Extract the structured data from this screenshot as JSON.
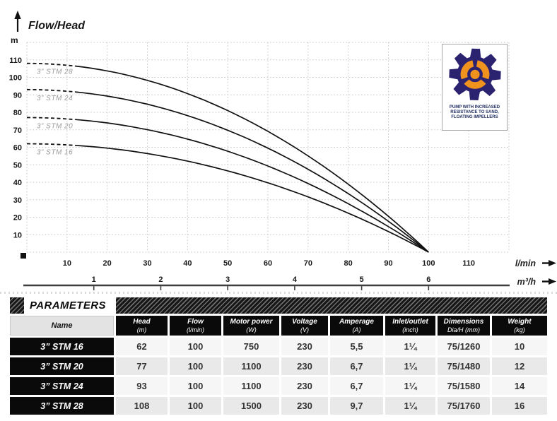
{
  "chart_data": {
    "type": "line",
    "title": "Flow/Head",
    "ylabel": "m",
    "xlabel_primary": "l/min",
    "xlabel_secondary": "m³/h",
    "xlim": [
      0,
      120
    ],
    "ylim": [
      0,
      120
    ],
    "grid": true,
    "y_ticks": [
      10,
      20,
      30,
      40,
      50,
      60,
      70,
      80,
      90,
      100,
      110
    ],
    "x_ticks_lmin": [
      10,
      20,
      30,
      40,
      50,
      60,
      70,
      80,
      90,
      100,
      110
    ],
    "x_ticks_m3h": [
      1,
      2,
      3,
      4,
      5,
      6
    ],
    "convergence_point": {
      "x_lmin": 100,
      "head_m": 0
    },
    "series": [
      {
        "name": "3” STM 28",
        "shutoff_head_m": 108,
        "points": [
          {
            "x": 0,
            "y": 108
          },
          {
            "x": 20,
            "y": 104
          },
          {
            "x": 40,
            "y": 91
          },
          {
            "x": 60,
            "y": 69
          },
          {
            "x": 80,
            "y": 39
          },
          {
            "x": 100,
            "y": 0
          }
        ]
      },
      {
        "name": "3” STM 24",
        "shutoff_head_m": 93,
        "points": [
          {
            "x": 0,
            "y": 93
          },
          {
            "x": 20,
            "y": 89
          },
          {
            "x": 40,
            "y": 78
          },
          {
            "x": 60,
            "y": 60
          },
          {
            "x": 80,
            "y": 33
          },
          {
            "x": 100,
            "y": 0
          }
        ]
      },
      {
        "name": "3” STM 20",
        "shutoff_head_m": 77,
        "points": [
          {
            "x": 0,
            "y": 77
          },
          {
            "x": 20,
            "y": 74
          },
          {
            "x": 40,
            "y": 65
          },
          {
            "x": 60,
            "y": 49
          },
          {
            "x": 80,
            "y": 28
          },
          {
            "x": 100,
            "y": 0
          }
        ]
      },
      {
        "name": "3” STM 16",
        "shutoff_head_m": 62,
        "points": [
          {
            "x": 0,
            "y": 62
          },
          {
            "x": 20,
            "y": 60
          },
          {
            "x": 40,
            "y": 52
          },
          {
            "x": 60,
            "y": 40
          },
          {
            "x": 80,
            "y": 22
          },
          {
            "x": 100,
            "y": 0
          }
        ]
      }
    ]
  },
  "badge": {
    "lines": [
      "PUMP WITH INCREASED",
      "RESISTANCE TO SAND,",
      "FLOATING IMPELLERS"
    ]
  },
  "parameters": {
    "banner": "PARAMETERS",
    "columns": [
      {
        "label": "Name",
        "unit": ""
      },
      {
        "label": "Head",
        "unit": "(m)"
      },
      {
        "label": "Flow",
        "unit": "(l/min)"
      },
      {
        "label": "Motor power",
        "unit": "(W)"
      },
      {
        "label": "Voltage",
        "unit": "(V)"
      },
      {
        "label": "Amperage",
        "unit": "(A)"
      },
      {
        "label": "Inlet/outlet",
        "unit": "(inch)"
      },
      {
        "label": "Dimensions",
        "unit": "Dia/H (mm)"
      },
      {
        "label": "Weight",
        "unit": "(kg)"
      }
    ],
    "rows": [
      {
        "name": "3” STM 16",
        "head": "62",
        "flow": "100",
        "motor_power": "750",
        "voltage": "230",
        "amperage": "5,5",
        "inlet_outlet": "1¼",
        "dimensions": "75/1260",
        "weight": "10"
      },
      {
        "name": "3” STM 20",
        "head": "77",
        "flow": "100",
        "motor_power": "1100",
        "voltage": "230",
        "amperage": "6,7",
        "inlet_outlet": "1¼",
        "dimensions": "75/1480",
        "weight": "12"
      },
      {
        "name": "3” STM 24",
        "head": "93",
        "flow": "100",
        "motor_power": "1100",
        "voltage": "230",
        "amperage": "6,7",
        "inlet_outlet": "1¼",
        "dimensions": "75/1580",
        "weight": "14"
      },
      {
        "name": "3” STM 28",
        "head": "108",
        "flow": "100",
        "motor_power": "1500",
        "voltage": "230",
        "amperage": "9,7",
        "inlet_outlet": "1¼",
        "dimensions": "75/1760",
        "weight": "16"
      }
    ]
  },
  "colors": {
    "curve": "#111111",
    "grid": "#c3c3c3",
    "scale_line": "#3f3f3f",
    "navy": "#2b2370",
    "orange": "#f0921e",
    "badge_text": "#1c2a5e"
  }
}
